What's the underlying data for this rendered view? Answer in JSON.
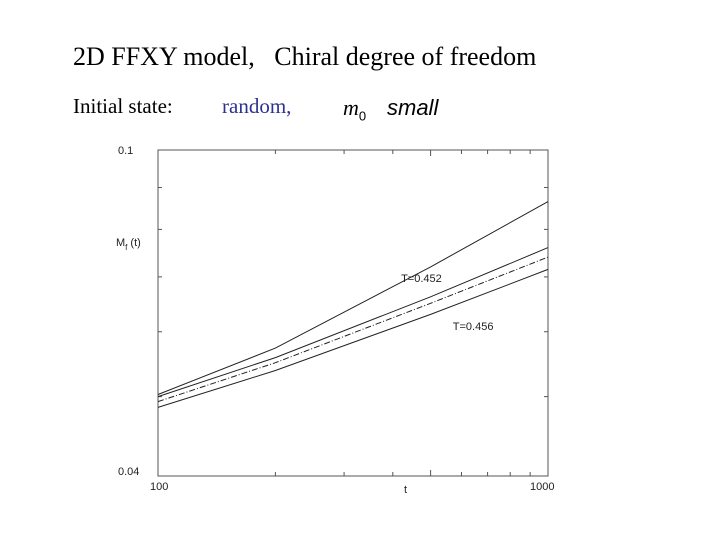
{
  "slide": {
    "title": "2D FFXY model,   Chiral degree of freedom",
    "initial_state_label": "Initial state:",
    "initial_state_value": "random,",
    "m0_symbol": "m",
    "m0_subscript": "0",
    "m0_desc": "small"
  },
  "chart_data": {
    "type": "line",
    "xscale": "log",
    "yscale": "log",
    "xlim": [
      100,
      1000
    ],
    "ylim": [
      0.04,
      0.1
    ],
    "xlabel": "t",
    "ylabel_main": "M",
    "ylabel_sub": "f",
    "ylabel_arg": "(t)",
    "x_tick_labels": [
      "100",
      "1000"
    ],
    "y_tick_labels": [
      "0.04",
      "0.1"
    ],
    "grid": false,
    "series": [
      {
        "style": "solid",
        "x": [
          100,
          200,
          500,
          1000
        ],
        "y": [
          0.0503,
          0.0573,
          0.072,
          0.0865
        ]
      },
      {
        "style": "solid",
        "x": [
          100,
          200,
          500,
          1000
        ],
        "y": [
          0.05,
          0.0558,
          0.0662,
          0.076
        ]
      },
      {
        "style": "dashdot",
        "x": [
          100,
          200,
          500,
          1000
        ],
        "y": [
          0.0493,
          0.055,
          0.065,
          0.074
        ]
      },
      {
        "style": "solid",
        "x": [
          100,
          200,
          500,
          1000
        ],
        "y": [
          0.0485,
          0.0538,
          0.063,
          0.0715
        ]
      }
    ],
    "annotations": [
      {
        "text": "T=0.452",
        "x": 420,
        "y": 0.069
      },
      {
        "text": "T=0.456",
        "x": 570,
        "y": 0.0603
      }
    ]
  }
}
